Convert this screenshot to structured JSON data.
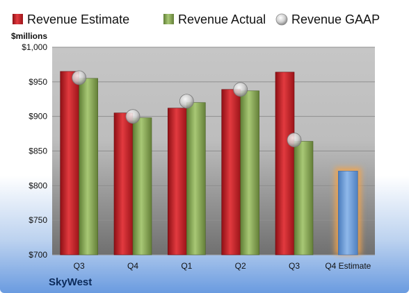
{
  "chart_data": {
    "type": "bar",
    "ylabel": "$millions",
    "ylim": [
      700,
      1000
    ],
    "yticks": [
      "$700",
      "$750",
      "$800",
      "$850",
      "$900",
      "$950",
      "$1,000"
    ],
    "ytick_values": [
      700,
      750,
      800,
      850,
      900,
      950,
      1000
    ],
    "categories": [
      "Q3",
      "Q4",
      "Q1",
      "Q2",
      "Q3",
      "Q4 Estimate"
    ],
    "legend_position": "top",
    "series": [
      {
        "name": "Revenue Estimate",
        "color": "#c8232a",
        "values": [
          965,
          905,
          912,
          939,
          964,
          null
        ]
      },
      {
        "name": "Revenue Actual",
        "color": "#8db05a",
        "values": [
          955,
          898,
          920,
          937,
          864,
          null
        ]
      },
      {
        "name": "Revenue GAAP",
        "color": "#c9c9c9",
        "values": [
          956,
          900,
          922,
          939,
          866,
          null
        ]
      }
    ],
    "forecast": {
      "category": "Q4 Estimate",
      "value": 821,
      "color": "#6f9fd8",
      "glow": "#f5a54a"
    },
    "grid": true
  },
  "brand": "SkyWest"
}
